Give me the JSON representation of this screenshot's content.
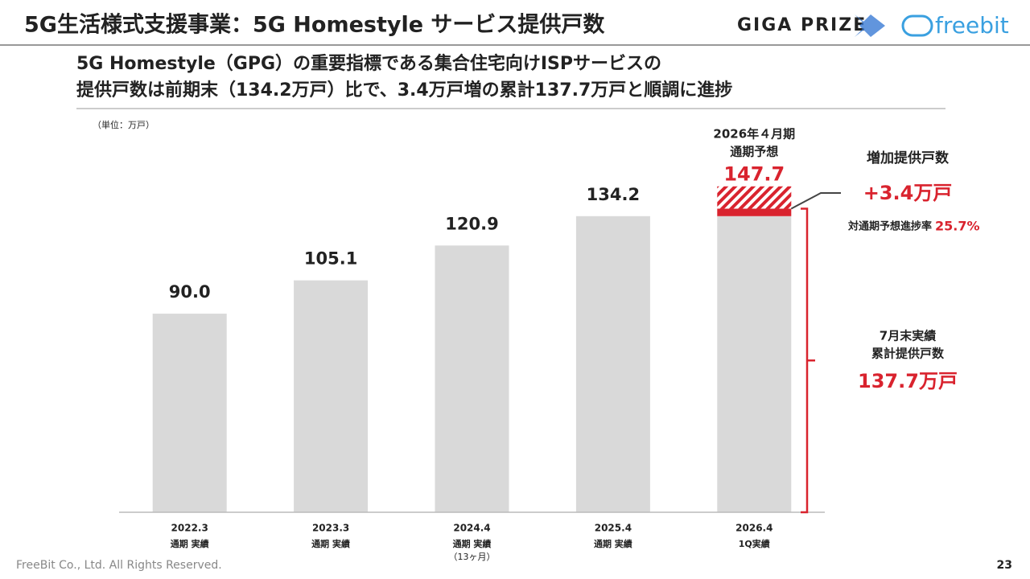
{
  "header": {
    "title": "5G生活様式支援事業：5G Homestyle サービス提供戸数",
    "logos": [
      "GIGA PRIZE",
      "freebit"
    ]
  },
  "subtitle": [
    "5G Homestyle（GPG）の重要指標である集合住宅向けISPサービスの",
    "提供戸数は前期末（134.2万戸）比で、3.4万戸増の累計137.7万戸と順調に進捗"
  ],
  "chart_data": {
    "type": "bar",
    "unit": "（単位：万戸）",
    "categories": [
      "2022.3",
      "2023.3",
      "2024.4",
      "2025.4",
      "2026.4"
    ],
    "sublabels": [
      "通期 実績",
      "通期 実績",
      "通期 実績",
      "通期 実績",
      "1Q実績"
    ],
    "notes": [
      null,
      null,
      "（13ヶ月）",
      null,
      null
    ],
    "values": [
      90.0,
      105.1,
      120.9,
      134.2,
      134.2
    ],
    "value_labels": [
      "90.0",
      "105.1",
      "120.9",
      "134.2",
      null
    ],
    "color": "#d9d9d9",
    "ylim": [
      0,
      160
    ],
    "increase": {
      "title": "増加提供戸数",
      "value": 3.4,
      "label": "+3.4万戸",
      "color": "#d9232e"
    },
    "forecast": {
      "title": [
        "2026年４月期",
        "通期予想"
      ],
      "value": 147.7,
      "label": "147.7"
    },
    "progress": {
      "label": "対通期予想進捗率",
      "value": 25.7,
      "value_label": "25.7%"
    },
    "cumulative": {
      "title": [
        "7月末実績",
        "累計提供戸数"
      ],
      "value": 137.7,
      "label": "137.7万戸"
    }
  },
  "footer": {
    "copyright": "FreeBit Co., Ltd. All Rights Reserved.",
    "page": "23"
  }
}
